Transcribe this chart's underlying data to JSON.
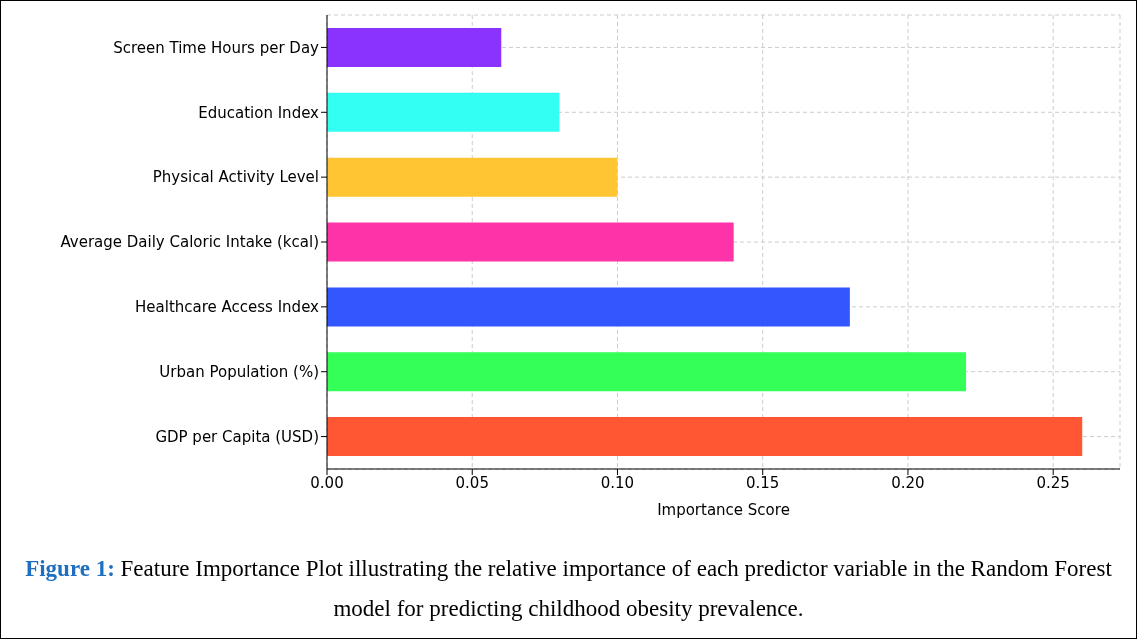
{
  "chart_data": {
    "type": "bar",
    "orientation": "horizontal",
    "categories": [
      "Screen Time Hours per Day",
      "Education Index",
      "Physical Activity Level",
      "Average Daily Caloric Intake (kcal)",
      "Healthcare Access Index",
      "Urban Population (%)",
      "GDP per Capita (USD)"
    ],
    "values": [
      0.06,
      0.08,
      0.1,
      0.14,
      0.18,
      0.22,
      0.26
    ],
    "colors": [
      "#8a33ff",
      "#33fff2",
      "#ffc533",
      "#ff33a8",
      "#3357ff",
      "#33ff57",
      "#ff5733"
    ],
    "xlim": [
      0,
      0.273
    ],
    "xticks": [
      {
        "value": 0,
        "label": "0.00"
      },
      {
        "value": 0.05,
        "label": "0.05"
      },
      {
        "value": 0.1,
        "label": "0.10"
      },
      {
        "value": 0.15,
        "label": "0.15"
      },
      {
        "value": 0.2,
        "label": "0.20"
      },
      {
        "value": 0.25,
        "label": "0.25"
      }
    ],
    "xlabel": "Importance Score",
    "grid": true,
    "annotations": [
      "Figure 1:",
      "Feature Importance Plot illustrating the relative importance of each predictor variable in the Random Forest model for predicting childhood obesity prevalence."
    ]
  }
}
